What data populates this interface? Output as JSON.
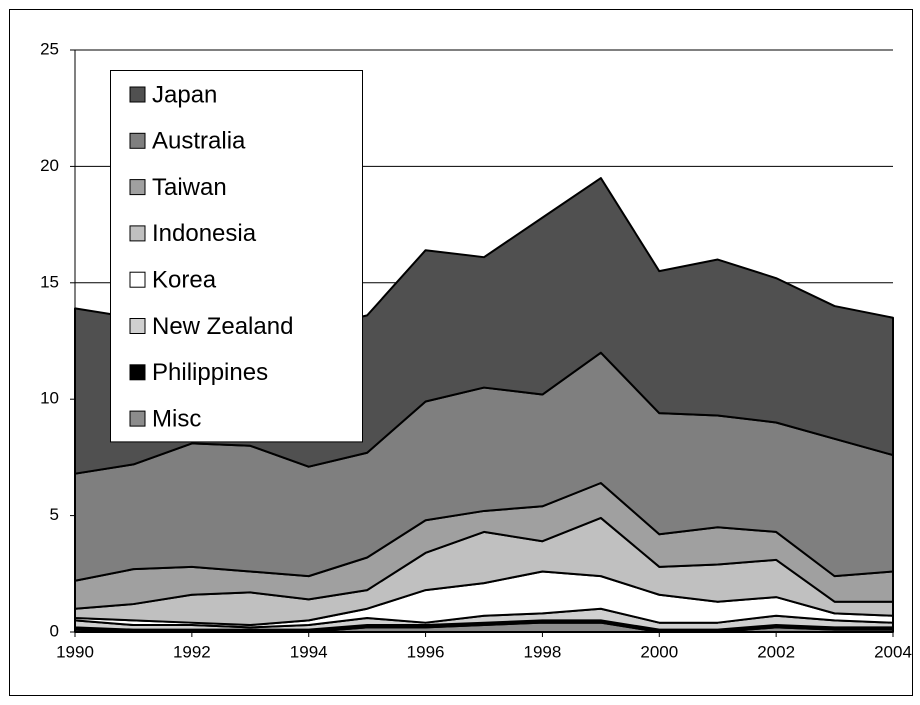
{
  "chart_data": {
    "type": "stacked-area",
    "x": [
      1990,
      1991,
      1992,
      1993,
      1994,
      1995,
      1996,
      1997,
      1998,
      1999,
      2000,
      2001,
      2002,
      2003,
      2004
    ],
    "xlim": [
      1990,
      2004
    ],
    "xticks": [
      1990,
      1992,
      1994,
      1996,
      1998,
      2000,
      2002,
      2004
    ],
    "ylim": [
      0,
      25
    ],
    "yticks": [
      0,
      5,
      10,
      15,
      20,
      25
    ],
    "grid": true,
    "legend": "upper left",
    "series": [
      {
        "name": "Misc",
        "color": "#8c8c8c",
        "values": [
          0.1,
          0,
          0,
          0,
          0,
          0.2,
          0.2,
          0.3,
          0.4,
          0.4,
          0,
          0,
          0.2,
          0.1,
          0.1
        ]
      },
      {
        "name": "Philippines",
        "color": "#000000",
        "values": [
          0.1,
          0.1,
          0.1,
          0.1,
          0.1,
          0.1,
          0.1,
          0.1,
          0.1,
          0.1,
          0.1,
          0.1,
          0.1,
          0.1,
          0.1
        ]
      },
      {
        "name": "New Zealand",
        "color": "#d0d0d0",
        "values": [
          0.3,
          0.2,
          0.2,
          0.1,
          0.2,
          0.3,
          0.1,
          0.3,
          0.3,
          0.5,
          0.3,
          0.3,
          0.4,
          0.3,
          0.2
        ]
      },
      {
        "name": "Korea",
        "color": "#ffffff",
        "values": [
          0.1,
          0.2,
          0.1,
          0.1,
          0.2,
          0.4,
          1.4,
          1.4,
          1.8,
          1.4,
          1.2,
          0.9,
          0.8,
          0.3,
          0.3
        ]
      },
      {
        "name": "Indonesia",
        "color": "#c0c0c0",
        "values": [
          0.4,
          0.7,
          1.2,
          1.4,
          0.9,
          0.8,
          1.6,
          2.2,
          1.3,
          2.5,
          1.2,
          1.6,
          1.6,
          0.5,
          0.6
        ]
      },
      {
        "name": "Taiwan",
        "color": "#a0a0a0",
        "values": [
          1.2,
          1.5,
          1.2,
          0.9,
          1.0,
          1.4,
          1.4,
          0.9,
          1.5,
          1.5,
          1.4,
          1.6,
          1.2,
          1.1,
          1.3
        ]
      },
      {
        "name": "Australia",
        "color": "#7f7f7f",
        "values": [
          4.6,
          4.5,
          5.3,
          5.4,
          4.7,
          4.5,
          5.1,
          5.3,
          4.8,
          5.6,
          5.2,
          4.8,
          4.7,
          5.9,
          5.0
        ]
      },
      {
        "name": "Japan",
        "color": "#505050",
        "values": [
          7.1,
          6.3,
          6.4,
          6.0,
          5.9,
          5.9,
          6.5,
          5.6,
          7.6,
          7.5,
          6.1,
          6.7,
          6.2,
          5.7,
          5.9
        ]
      }
    ]
  }
}
